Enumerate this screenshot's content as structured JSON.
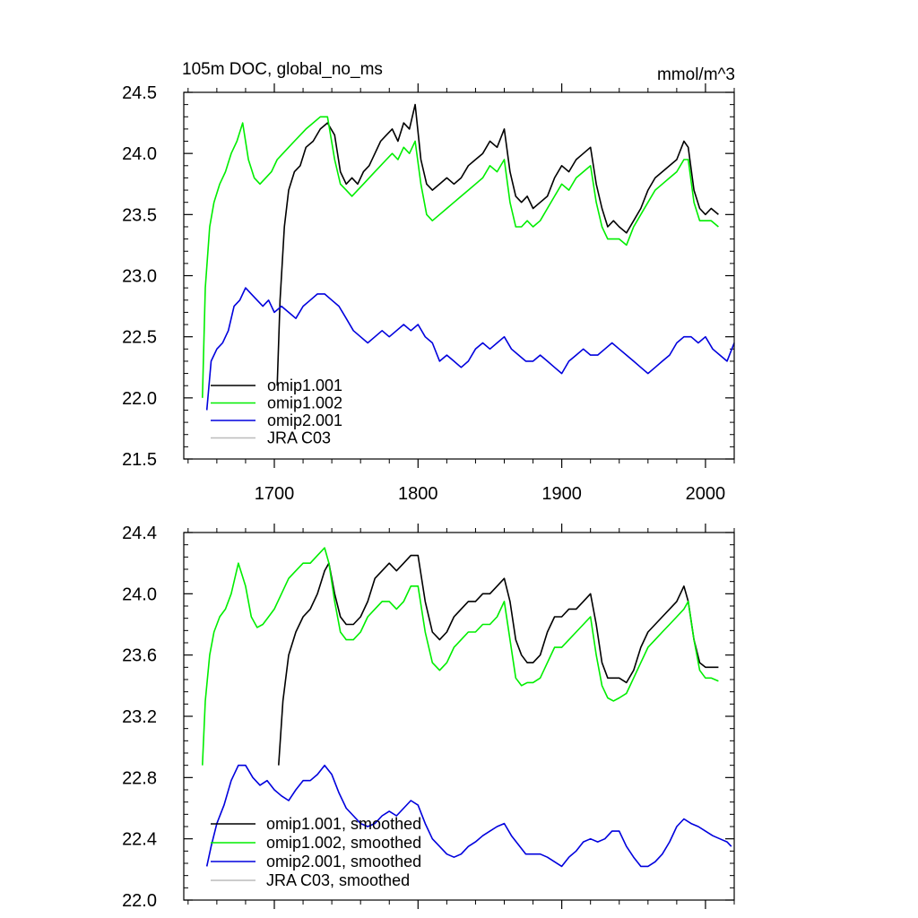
{
  "chart_data": [
    {
      "type": "line",
      "title": "105m DOC, global_no_ms",
      "units": "mmol/m^3",
      "xlim": [
        1637,
        2020
      ],
      "ylim": [
        21.5,
        24.5
      ],
      "x_ticks": [
        1700,
        1800,
        1900,
        2000
      ],
      "x_tick_labels": [
        "1700",
        "1800",
        "1900",
        "2000"
      ],
      "y_ticks": [
        21.5,
        22.0,
        22.5,
        23.0,
        23.5,
        24.0,
        24.5
      ],
      "y_tick_labels": [
        "21.5",
        "22.0",
        "22.5",
        "23.0",
        "23.5",
        "24.0",
        "24.5"
      ],
      "legend": {
        "position": "bottom-left",
        "entries": [
          "omip1.001",
          "omip1.002",
          "omip2.001",
          "JRA C03"
        ]
      },
      "series": [
        {
          "name": "omip1.001",
          "color": "#000000",
          "x": [
            1702,
            1704,
            1707,
            1710,
            1714,
            1718,
            1722,
            1727,
            1732,
            1737,
            1742,
            1746,
            1750,
            1754,
            1758,
            1762,
            1766,
            1770,
            1774,
            1778,
            1782,
            1786,
            1790,
            1794,
            1798,
            1802,
            1806,
            1810,
            1815,
            1820,
            1825,
            1830,
            1835,
            1840,
            1845,
            1850,
            1855,
            1860,
            1864,
            1868,
            1872,
            1876,
            1880,
            1885,
            1890,
            1895,
            1900,
            1905,
            1910,
            1915,
            1920,
            1924,
            1928,
            1932,
            1936,
            1940,
            1945,
            1950,
            1955,
            1960,
            1965,
            1970,
            1975,
            1980,
            1985,
            1988,
            1992,
            1996,
            2000,
            2004,
            2009
          ],
          "values": [
            22.1,
            22.8,
            23.4,
            23.7,
            23.85,
            23.9,
            24.05,
            24.1,
            24.2,
            24.25,
            24.15,
            23.85,
            23.75,
            23.8,
            23.75,
            23.85,
            23.9,
            24.0,
            24.1,
            24.15,
            24.2,
            24.1,
            24.25,
            24.2,
            24.4,
            23.95,
            23.75,
            23.7,
            23.75,
            23.8,
            23.75,
            23.8,
            23.9,
            23.95,
            24.0,
            24.1,
            24.05,
            24.2,
            23.85,
            23.65,
            23.6,
            23.65,
            23.55,
            23.6,
            23.65,
            23.8,
            23.9,
            23.85,
            23.95,
            24.0,
            24.05,
            23.75,
            23.55,
            23.4,
            23.45,
            23.4,
            23.35,
            23.45,
            23.55,
            23.7,
            23.8,
            23.85,
            23.9,
            23.95,
            24.1,
            24.05,
            23.7,
            23.55,
            23.5,
            23.55,
            23.5
          ]
        },
        {
          "name": "omip1.002",
          "color": "#00ee00",
          "x": [
            1650,
            1652,
            1655,
            1658,
            1662,
            1666,
            1670,
            1674,
            1678,
            1682,
            1686,
            1690,
            1694,
            1698,
            1702,
            1706,
            1710,
            1714,
            1718,
            1722,
            1727,
            1732,
            1737,
            1742,
            1746,
            1750,
            1754,
            1758,
            1762,
            1766,
            1770,
            1774,
            1778,
            1782,
            1786,
            1790,
            1794,
            1798,
            1802,
            1806,
            1810,
            1815,
            1820,
            1825,
            1830,
            1835,
            1840,
            1845,
            1850,
            1855,
            1860,
            1864,
            1868,
            1872,
            1876,
            1880,
            1885,
            1890,
            1895,
            1900,
            1905,
            1910,
            1915,
            1920,
            1924,
            1928,
            1932,
            1936,
            1940,
            1945,
            1950,
            1955,
            1960,
            1965,
            1970,
            1975,
            1980,
            1985,
            1988,
            1992,
            1996,
            2000,
            2004,
            2009
          ],
          "values": [
            22.0,
            22.9,
            23.4,
            23.6,
            23.75,
            23.85,
            24.0,
            24.1,
            24.25,
            23.95,
            23.8,
            23.75,
            23.8,
            23.85,
            23.95,
            24.0,
            24.05,
            24.1,
            24.15,
            24.2,
            24.25,
            24.3,
            24.3,
            23.95,
            23.75,
            23.7,
            23.65,
            23.7,
            23.75,
            23.8,
            23.85,
            23.9,
            23.95,
            24.0,
            23.95,
            24.05,
            24.0,
            24.1,
            23.75,
            23.5,
            23.45,
            23.5,
            23.55,
            23.6,
            23.65,
            23.7,
            23.75,
            23.8,
            23.9,
            23.85,
            23.95,
            23.6,
            23.4,
            23.4,
            23.45,
            23.4,
            23.45,
            23.55,
            23.65,
            23.75,
            23.7,
            23.8,
            23.85,
            23.9,
            23.6,
            23.4,
            23.3,
            23.3,
            23.3,
            23.25,
            23.4,
            23.5,
            23.6,
            23.7,
            23.75,
            23.8,
            23.85,
            23.95,
            23.95,
            23.6,
            23.45,
            23.45,
            23.45,
            23.4
          ]
        },
        {
          "name": "omip2.001",
          "color": "#0000dd",
          "x": [
            1653,
            1656,
            1660,
            1664,
            1668,
            1672,
            1676,
            1680,
            1684,
            1688,
            1692,
            1696,
            1700,
            1705,
            1710,
            1715,
            1720,
            1725,
            1730,
            1735,
            1740,
            1745,
            1750,
            1755,
            1760,
            1765,
            1770,
            1775,
            1780,
            1785,
            1790,
            1795,
            1800,
            1805,
            1810,
            1815,
            1820,
            1825,
            1830,
            1835,
            1840,
            1845,
            1850,
            1855,
            1860,
            1865,
            1870,
            1875,
            1880,
            1885,
            1890,
            1895,
            1900,
            1905,
            1910,
            1915,
            1920,
            1925,
            1930,
            1935,
            1940,
            1945,
            1950,
            1955,
            1960,
            1965,
            1970,
            1975,
            1980,
            1985,
            1990,
            1995,
            2000,
            2005,
            2010,
            2015,
            2020
          ],
          "values": [
            21.9,
            22.3,
            22.4,
            22.45,
            22.55,
            22.75,
            22.8,
            22.9,
            22.85,
            22.8,
            22.75,
            22.8,
            22.7,
            22.75,
            22.7,
            22.65,
            22.75,
            22.8,
            22.85,
            22.85,
            22.8,
            22.75,
            22.65,
            22.55,
            22.5,
            22.45,
            22.5,
            22.55,
            22.5,
            22.55,
            22.6,
            22.55,
            22.6,
            22.5,
            22.45,
            22.3,
            22.35,
            22.3,
            22.25,
            22.3,
            22.4,
            22.45,
            22.4,
            22.45,
            22.5,
            22.4,
            22.35,
            22.3,
            22.3,
            22.35,
            22.3,
            22.25,
            22.2,
            22.3,
            22.35,
            22.4,
            22.35,
            22.35,
            22.4,
            22.45,
            22.4,
            22.35,
            22.3,
            22.25,
            22.2,
            22.25,
            22.3,
            22.35,
            22.45,
            22.5,
            22.5,
            22.45,
            22.5,
            22.4,
            22.35,
            22.3,
            22.45
          ]
        },
        {
          "name": "JRA C03",
          "color": "#bbbbbb",
          "x": [],
          "values": []
        }
      ]
    },
    {
      "type": "line",
      "title": "",
      "xlim": [
        1637,
        2020
      ],
      "ylim": [
        22.0,
        24.4
      ],
      "y_ticks": [
        22.0,
        22.4,
        22.8,
        23.2,
        23.6,
        24.0,
        24.4
      ],
      "y_tick_labels": [
        "22.0",
        "22.4",
        "22.8",
        "23.2",
        "23.6",
        "24.0",
        "24.4"
      ],
      "legend": {
        "position": "bottom-left",
        "entries": [
          "omip1.001, smoothed",
          "omip1.002, smoothed",
          "omip2.001, smoothed",
          "JRA C03, smoothed"
        ]
      },
      "series": [
        {
          "name": "omip1.001, smoothed",
          "color": "#000000",
          "x": [
            1703,
            1706,
            1710,
            1715,
            1720,
            1725,
            1730,
            1735,
            1738,
            1742,
            1746,
            1750,
            1755,
            1760,
            1765,
            1770,
            1775,
            1780,
            1785,
            1790,
            1795,
            1800,
            1805,
            1810,
            1815,
            1820,
            1825,
            1830,
            1835,
            1840,
            1845,
            1850,
            1855,
            1860,
            1864,
            1868,
            1872,
            1876,
            1880,
            1885,
            1890,
            1895,
            1900,
            1905,
            1910,
            1915,
            1920,
            1924,
            1928,
            1932,
            1936,
            1940,
            1945,
            1950,
            1955,
            1960,
            1965,
            1970,
            1975,
            1980,
            1985,
            1988,
            1992,
            1996,
            2000,
            2004,
            2009
          ],
          "values": [
            22.88,
            23.3,
            23.6,
            23.75,
            23.85,
            23.9,
            24.0,
            24.15,
            24.2,
            24.0,
            23.85,
            23.8,
            23.8,
            23.85,
            23.95,
            24.1,
            24.15,
            24.2,
            24.15,
            24.2,
            24.25,
            24.25,
            23.95,
            23.75,
            23.7,
            23.75,
            23.85,
            23.9,
            23.95,
            23.95,
            24.0,
            24.0,
            24.05,
            24.1,
            23.95,
            23.7,
            23.6,
            23.55,
            23.55,
            23.6,
            23.75,
            23.85,
            23.85,
            23.9,
            23.9,
            23.95,
            24.0,
            23.8,
            23.55,
            23.45,
            23.45,
            23.45,
            23.42,
            23.5,
            23.65,
            23.75,
            23.8,
            23.85,
            23.9,
            23.95,
            24.05,
            23.95,
            23.7,
            23.55,
            23.52,
            23.52,
            23.52
          ]
        },
        {
          "name": "omip1.002, smoothed",
          "color": "#00ee00",
          "x": [
            1650,
            1652,
            1655,
            1658,
            1662,
            1666,
            1670,
            1675,
            1680,
            1684,
            1688,
            1692,
            1696,
            1700,
            1705,
            1710,
            1715,
            1720,
            1725,
            1730,
            1735,
            1738,
            1742,
            1746,
            1750,
            1755,
            1760,
            1765,
            1770,
            1775,
            1780,
            1785,
            1790,
            1795,
            1800,
            1805,
            1810,
            1815,
            1820,
            1825,
            1830,
            1835,
            1840,
            1845,
            1850,
            1855,
            1860,
            1864,
            1868,
            1872,
            1876,
            1880,
            1885,
            1890,
            1895,
            1900,
            1905,
            1910,
            1915,
            1920,
            1924,
            1928,
            1932,
            1936,
            1940,
            1945,
            1950,
            1955,
            1960,
            1965,
            1970,
            1975,
            1980,
            1985,
            1988,
            1992,
            1996,
            2000,
            2004,
            2009
          ],
          "values": [
            22.88,
            23.3,
            23.6,
            23.75,
            23.85,
            23.9,
            24.0,
            24.2,
            24.05,
            23.85,
            23.78,
            23.8,
            23.85,
            23.9,
            24.0,
            24.1,
            24.15,
            24.2,
            24.2,
            24.25,
            24.3,
            24.2,
            23.95,
            23.75,
            23.7,
            23.7,
            23.75,
            23.85,
            23.9,
            23.95,
            23.95,
            23.9,
            23.95,
            24.05,
            24.05,
            23.75,
            23.55,
            23.5,
            23.55,
            23.65,
            23.7,
            23.75,
            23.75,
            23.8,
            23.8,
            23.85,
            23.95,
            23.7,
            23.45,
            23.4,
            23.42,
            23.42,
            23.45,
            23.55,
            23.65,
            23.65,
            23.7,
            23.75,
            23.8,
            23.85,
            23.6,
            23.4,
            23.32,
            23.3,
            23.32,
            23.35,
            23.45,
            23.55,
            23.65,
            23.7,
            23.75,
            23.8,
            23.85,
            23.9,
            23.95,
            23.7,
            23.5,
            23.45,
            23.45,
            23.43
          ]
        },
        {
          "name": "omip2.001, smoothed",
          "color": "#0000dd",
          "x": [
            1653,
            1656,
            1660,
            1665,
            1670,
            1675,
            1680,
            1685,
            1690,
            1695,
            1700,
            1705,
            1710,
            1715,
            1720,
            1725,
            1730,
            1735,
            1740,
            1745,
            1750,
            1755,
            1760,
            1765,
            1770,
            1775,
            1780,
            1785,
            1790,
            1795,
            1800,
            1805,
            1810,
            1815,
            1820,
            1825,
            1830,
            1835,
            1840,
            1845,
            1850,
            1855,
            1860,
            1865,
            1870,
            1875,
            1880,
            1885,
            1890,
            1895,
            1900,
            1905,
            1910,
            1915,
            1920,
            1925,
            1930,
            1935,
            1940,
            1945,
            1950,
            1955,
            1960,
            1965,
            1970,
            1975,
            1980,
            1985,
            1990,
            1995,
            2000,
            2005,
            2010,
            2015,
            2018
          ],
          "values": [
            22.22,
            22.35,
            22.5,
            22.62,
            22.78,
            22.88,
            22.88,
            22.8,
            22.75,
            22.78,
            22.72,
            22.68,
            22.65,
            22.72,
            22.78,
            22.78,
            22.82,
            22.88,
            22.82,
            22.7,
            22.6,
            22.55,
            22.5,
            22.48,
            22.5,
            22.55,
            22.58,
            22.55,
            22.6,
            22.65,
            22.62,
            22.5,
            22.4,
            22.35,
            22.3,
            22.28,
            22.3,
            22.35,
            22.38,
            22.42,
            22.45,
            22.48,
            22.5,
            22.42,
            22.36,
            22.3,
            22.3,
            22.3,
            22.28,
            22.25,
            22.22,
            22.28,
            22.32,
            22.38,
            22.4,
            22.38,
            22.4,
            22.45,
            22.45,
            22.35,
            22.28,
            22.22,
            22.22,
            22.25,
            22.3,
            22.38,
            22.48,
            22.53,
            22.5,
            22.48,
            22.45,
            22.42,
            22.4,
            22.38,
            22.35
          ]
        },
        {
          "name": "JRA C03, smoothed",
          "color": "#bbbbbb",
          "x": [],
          "values": []
        }
      ]
    }
  ]
}
